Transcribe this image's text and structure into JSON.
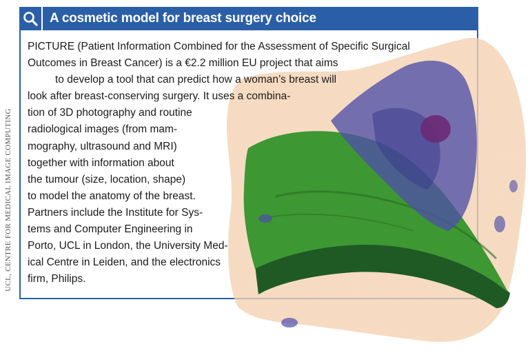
{
  "header": {
    "title": "A cosmetic model for breast surgery choice"
  },
  "credit": "UCL, CENTRE FOR MEDICAL IMAGE COMPUTING",
  "body_lines": [
    "PICTURE (Patient Information Combined for the Assessment of Specific Surgical",
    "Outcomes in Breast Cancer) is a €2.2 million EU project that aims",
    "to develop a tool that can predict how a woman’s breast will",
    "look after breast-conserving surgery. It uses a combina-",
    "tion of 3D photography and routine",
    "radiological images (from mam-",
    "mography, ultrasound and MRI)",
    "together with information about",
    "the tumour (size, location, shape)",
    "to model the anatomy of the breast.",
    "Partners include the Institute for Sys-",
    "tems and Computer Engineering in",
    "Porto, UCL in London, the University Med-",
    "ical Centre in Leiden, and the electronics",
    "firm, Philips."
  ],
  "icons": {
    "header_icon": "magnifier-icon"
  },
  "colors": {
    "accent": "#2a5fa8",
    "skin": "#f6d6b8",
    "tissue_green": "#3f9a34",
    "tissue_blue": "#4e4fa8",
    "tumour": "#6b2a76"
  }
}
